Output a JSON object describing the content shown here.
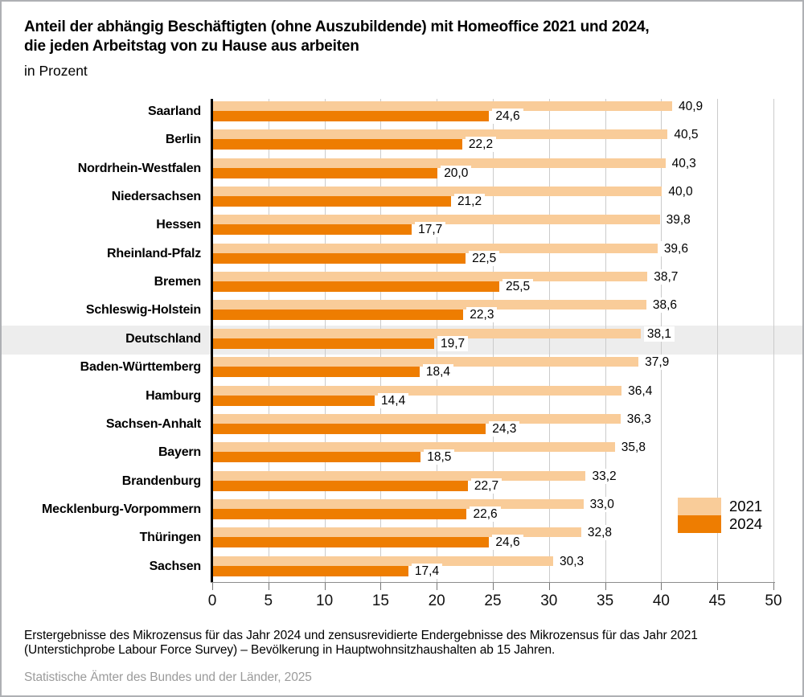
{
  "title": {
    "line1": "Anteil der abhängig Beschäftigten (ohne Auszubildende) mit Homeoffice 2021 und 2024,",
    "line2": "die jeden Arbeitstag von zu Hause aus arbeiten",
    "subtitle": "in Prozent"
  },
  "chart_data": {
    "type": "bar",
    "orientation": "horizontal",
    "categories": [
      "Saarland",
      "Berlin",
      "Nordrhein-Westfalen",
      "Niedersachsen",
      "Hessen",
      "Rheinland-Pfalz",
      "Bremen",
      "Schleswig-Holstein",
      "Deutschland",
      "Baden-Württemberg",
      "Hamburg",
      "Sachsen-Anhalt",
      "Bayern",
      "Brandenburg",
      "Mecklenburg-Vorpommern",
      "Thüringen",
      "Sachsen"
    ],
    "series": [
      {
        "name": "2021",
        "color": "#F9CC99",
        "values": [
          40.9,
          40.5,
          40.3,
          40.0,
          39.8,
          39.6,
          38.7,
          38.6,
          38.1,
          37.9,
          36.4,
          36.3,
          35.8,
          33.2,
          33.0,
          32.8,
          30.3
        ]
      },
      {
        "name": "2024",
        "color": "#EE7D01",
        "values": [
          24.6,
          22.2,
          20.0,
          21.2,
          17.7,
          22.5,
          25.5,
          22.3,
          19.7,
          18.4,
          14.4,
          24.3,
          18.5,
          22.7,
          22.6,
          24.6,
          17.4
        ]
      }
    ],
    "highlight_category": "Deutschland",
    "highlight_band_color": "#EDEDED",
    "xlim": [
      0,
      50
    ],
    "x_ticks": [
      0,
      5,
      10,
      15,
      20,
      25,
      30,
      35,
      40,
      45,
      50
    ],
    "grid": true,
    "gridline_color": "#CBCBCB",
    "decimal_separator": ",",
    "legend_position": "right-bottom",
    "legend_entries": [
      "2021",
      "2024"
    ]
  },
  "footer": {
    "note_line1": "Erstergebnisse des Mikrozensus für das Jahr 2024 und zensusrevidierte Endergebnisse des Mikrozensus für das Jahr 2021",
    "note_line2": "(Unterstichprobe Labour Force Survey) – Bevölkerung in Hauptwohnsitzhaushalten ab 15 Jahren.",
    "source": "Statistische Ämter des Bundes und der Länder, 2025"
  },
  "colors": {
    "bar_2021": "#F9CC99",
    "bar_2024": "#EE7D01",
    "highlight_band": "#EDEDED",
    "gridline": "#CBCBCB",
    "axis_line": "#000000",
    "source_text": "#9B9B9B"
  }
}
